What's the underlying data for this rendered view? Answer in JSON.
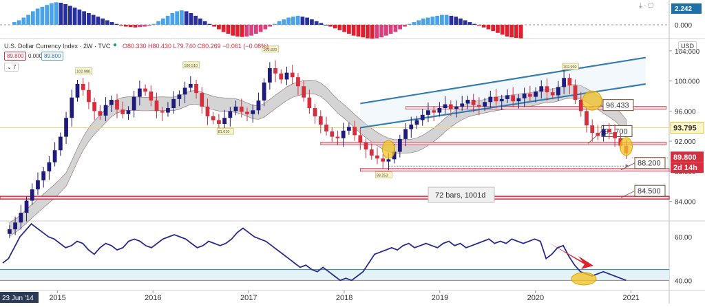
{
  "header": {
    "symbol_title": "U.S. Dollar Currency Index · 2W · TVC",
    "ohlc": "O80.330 H80.430 L79.740 C80.269 −0.061 (−0.08%)",
    "currency_button": "USD",
    "chip_left": "89.800",
    "chip_mid": "0.000",
    "chip_right": "89.800",
    "indicator_toggle": "7"
  },
  "toolbar_icons": [
    "lock-icon",
    "eye-icon",
    "settings-icon",
    "more-icon"
  ],
  "colors": {
    "up_candle": "#1e1b7a",
    "down_candle": "#d32f3f",
    "macd_light": "#4aa3e8",
    "macd_dark": "#2a2f9e",
    "macd_red": "#e0202f",
    "macd_pink": "#d8407e",
    "cloud": "#b0b0b0",
    "channel": "#1f6fa8",
    "rsi_line": "#2a2a8e",
    "support": "#c0334a",
    "highlight": "#f3c32a",
    "arrow": "#e0202f"
  },
  "chart_data": [
    {
      "type": "bar",
      "name_hint": "macd-histogram",
      "ylabels": [
        "2.242",
        "0.000"
      ],
      "values": [
        0.3,
        0.5,
        0.8,
        1.1,
        1.5,
        1.8,
        2.0,
        2.2,
        2.4,
        2.5,
        2.45,
        2.3,
        2.1,
        1.9,
        1.7,
        1.5,
        1.3,
        1.1,
        0.9,
        0.7,
        0.5,
        0.3,
        0.1,
        -0.1,
        -0.2,
        -0.25,
        -0.3,
        -0.25,
        -0.2,
        -0.1,
        0.1,
        0.4,
        0.7,
        1.0,
        1.3,
        1.5,
        1.6,
        1.5,
        1.3,
        1.0,
        0.7,
        0.4,
        0.1,
        -0.2,
        -0.5,
        -0.8,
        -1.0,
        -1.2,
        -1.3,
        -1.35,
        -1.3,
        -1.2,
        -1.0,
        -0.8,
        -0.5,
        -0.2,
        0.1,
        0.4,
        0.6,
        0.8,
        0.9,
        1.0,
        0.9,
        0.8,
        0.6,
        0.4,
        0.2,
        0.0,
        -0.2,
        -0.4,
        -0.6,
        -0.8,
        -1.0,
        -1.2,
        -1.3,
        -1.4,
        -1.5,
        -1.55,
        -1.5,
        -1.4,
        -1.2,
        -1.0,
        -0.8,
        -0.5,
        -0.2,
        0.1,
        0.3,
        0.5,
        0.7,
        0.8,
        0.9,
        1.0,
        1.1,
        1.1,
        1.0,
        0.9,
        0.7,
        0.5,
        0.3,
        0.1,
        -0.1,
        -0.3,
        -0.5,
        -0.7,
        -0.9,
        -1.1,
        -1.3,
        -1.4,
        -1.45,
        -1.5
      ]
    },
    {
      "type": "line",
      "name_hint": "dxy-price",
      "ylim": [
        81.5,
        106
      ],
      "y_ticks": [
        104.0,
        100.0,
        96.0,
        92.0,
        88.0,
        84.0
      ],
      "y_tick_labels": [
        "104.000",
        "100.000",
        "96.000",
        "92.000",
        "88.000",
        "84.000"
      ],
      "x_ticks": [
        "2015",
        "2016",
        "2017",
        "2018",
        "2019",
        "2020",
        "2021"
      ],
      "x_tick_years": [
        2015,
        2016,
        2017,
        2018,
        2019,
        2020,
        2021
      ],
      "x_range_years": [
        2014.4,
        2021.4
      ],
      "start_date_label": "23 Jun '14",
      "close_series": [
        80.3,
        81.2,
        82.5,
        84.1,
        85.6,
        86.8,
        88.0,
        89.2,
        90.8,
        92.6,
        95.1,
        97.8,
        99.6,
        98.8,
        97.2,
        96.0,
        95.4,
        96.8,
        97.5,
        96.2,
        95.6,
        96.1,
        97.9,
        99.0,
        98.6,
        97.4,
        96.0,
        95.8,
        96.4,
        97.6,
        98.2,
        99.1,
        99.6,
        98.4,
        96.6,
        95.3,
        94.8,
        94.3,
        95.1,
        96.0,
        96.6,
        95.9,
        95.6,
        96.1,
        97.4,
        99.8,
        101.7,
        101.0,
        100.2,
        101.1,
        100.5,
        99.3,
        97.8,
        96.4,
        95.3,
        94.2,
        93.3,
        92.6,
        92.4,
        93.4,
        93.9,
        92.8,
        91.8,
        90.9,
        90.1,
        89.7,
        89.3,
        89.6,
        90.6,
        92.3,
        93.6,
        94.2,
        94.8,
        95.5,
        96.1,
        95.8,
        96.4,
        96.9,
        96.3,
        96.6,
        97.0,
        97.5,
        96.8,
        96.6,
        97.2,
        97.9,
        97.3,
        97.6,
        98.1,
        97.3,
        97.7,
        98.3,
        97.9,
        98.6,
        99.3,
        98.5,
        98.1,
        99.2,
        100.4,
        99.4,
        97.5,
        96.0,
        94.1,
        93.1,
        92.7,
        93.6,
        93.2,
        92.4,
        91.4,
        90.4
      ],
      "annotations": [
        "102.980",
        "100.510",
        "103.820",
        "81.010",
        "88.253",
        "102.992"
      ],
      "h_levels": [
        {
          "value": 96.433,
          "label": "96.433"
        },
        {
          "value": 91.7,
          "label": "91.700"
        },
        {
          "value": 88.2,
          "label": "88.200"
        },
        {
          "value": 84.5,
          "label": "84.500"
        }
      ],
      "reference_line": {
        "value": 93.795,
        "label": "93.795"
      },
      "last_price": {
        "value": 89.8,
        "label": "89.800",
        "countdown": "2d 14h"
      },
      "measure_label": "72 bars, 1001d"
    },
    {
      "type": "line",
      "name_hint": "rsi",
      "ylim": [
        36,
        67
      ],
      "y_ticks": [
        60.0,
        40.0
      ],
      "y_tick_labels": [
        "60.00",
        "40.00"
      ],
      "band": [
        40,
        45
      ],
      "values": [
        48,
        50,
        55,
        60,
        63,
        66,
        64,
        62,
        60,
        59,
        57,
        55,
        56,
        58,
        57,
        54,
        52,
        55,
        57,
        56,
        54,
        55,
        58,
        59,
        58,
        56,
        55,
        57,
        59,
        60,
        61,
        60,
        59,
        57,
        55,
        56,
        58,
        57,
        56,
        57,
        59,
        62,
        64,
        62,
        60,
        59,
        58,
        56,
        54,
        52,
        50,
        48,
        46,
        47,
        45,
        44,
        46,
        44,
        42,
        40,
        41,
        40,
        42,
        44,
        48,
        52,
        53,
        54,
        55,
        54,
        56,
        57,
        55,
        56,
        57,
        56,
        55,
        57,
        58,
        56,
        57,
        55,
        56,
        57,
        58,
        59,
        57,
        58,
        57,
        59,
        58,
        57,
        58,
        59,
        58,
        50,
        52,
        55,
        56,
        51,
        47,
        44,
        43,
        42,
        43,
        44,
        43,
        42,
        41,
        40
      ]
    }
  ]
}
